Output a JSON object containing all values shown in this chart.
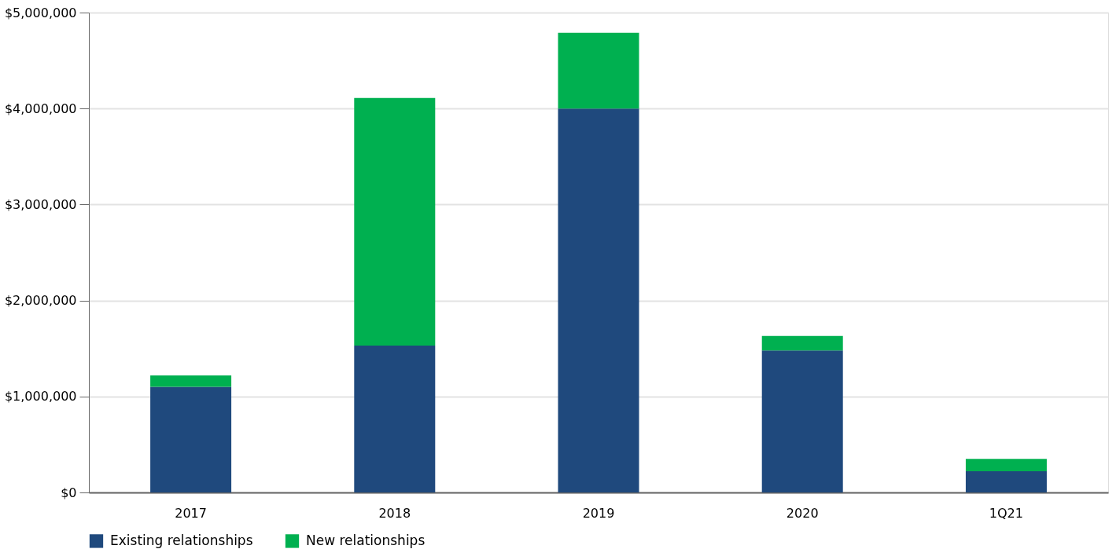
{
  "chart_data": {
    "type": "bar",
    "stacked": true,
    "categories": [
      "2017",
      "2018",
      "2019",
      "2020",
      "1Q21"
    ],
    "series": [
      {
        "name": "Existing relationships",
        "color": "#1f497d",
        "values": [
          1100000,
          1530000,
          4000000,
          1480000,
          220000
        ]
      },
      {
        "name": "New relationships",
        "color": "#00b050",
        "values": [
          120000,
          2580000,
          790000,
          150000,
          130000
        ]
      }
    ],
    "ylim": [
      0,
      5000000
    ],
    "yticks": [
      {
        "value": 0,
        "label": "$0"
      },
      {
        "value": 1000000,
        "label": "$1,000,000"
      },
      {
        "value": 2000000,
        "label": "$2,000,000"
      },
      {
        "value": 3000000,
        "label": "$3,000,000"
      },
      {
        "value": 4000000,
        "label": "$4,000,000"
      },
      {
        "value": 5000000,
        "label": "$5,000,000"
      }
    ],
    "grid": "y",
    "legend": "bottom"
  }
}
